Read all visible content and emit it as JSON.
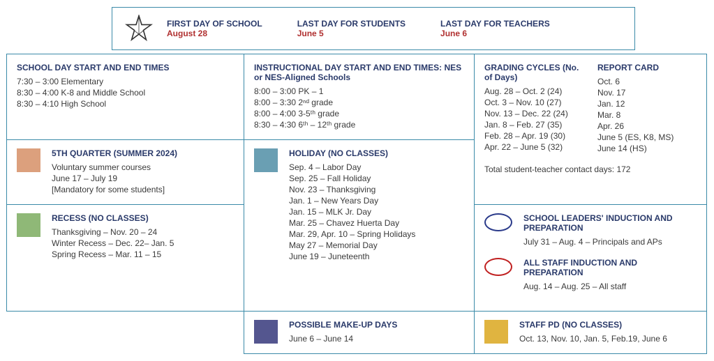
{
  "banner": {
    "dates": [
      {
        "label": "FIRST DAY OF SCHOOL",
        "value": "August 28"
      },
      {
        "label": "LAST DAY FOR STUDENTS",
        "value": "June 5"
      },
      {
        "label": "LAST DAY FOR TEACHERS",
        "value": "June 6"
      }
    ]
  },
  "schoolDay": {
    "title": "SCHOOL DAY START AND END TIMES",
    "lines": [
      "7:30 – 3:00   Elementary",
      "8:30 – 4:00   K-8 and Middle School",
      "8:30 – 4:10   High School"
    ]
  },
  "instructionalDay": {
    "title": "INSTRUCTIONAL DAY START AND END TIMES: NES or NES-Aligned Schools",
    "lines": [
      "8:00 – 3:00   PK – 1",
      "8:00 – 3:30   2ⁿᵈ grade",
      "8:00 – 4:00   3-5ᵗʰ grade",
      "8:30 – 4:30   6ᵗʰ – 12ᵗʰ grade"
    ]
  },
  "grading": {
    "title1": "GRADING CYCLES (No. of Days)",
    "col1": [
      "Aug. 28 – Oct. 2 (24)",
      "Oct. 3 – Nov. 10 (27)",
      "Nov. 13 – Dec. 22 (24)",
      "Jan. 8 – Feb. 27 (35)",
      "Feb. 28 – Apr. 19 (30)",
      "Apr. 22 – June 5 (32)"
    ],
    "title2": "REPORT CARD",
    "col2": [
      "Oct. 6",
      "Nov. 17",
      "Jan. 12",
      "Mar. 8",
      "Apr. 26",
      "June 5 (ES, K8, MS)",
      "June 14 (HS)"
    ],
    "footer": "Total student-teacher contact days: 172"
  },
  "fifth": {
    "title": "5TH QUARTER (SUMMER 2024)",
    "lines": [
      "Voluntary summer courses",
      "June 17 – July 19",
      "[Mandatory for some students]"
    ],
    "color": "#dca07d"
  },
  "recess": {
    "title": "RECESS (NO CLASSES)",
    "lines": [
      "Thanksgiving – Nov. 20 – 24",
      "Winter Recess – Dec. 22– Jan. 5",
      "Spring Recess – Mar. 11 – 15"
    ],
    "color": "#8fb877"
  },
  "holiday": {
    "title": "HOLIDAY (NO CLASSES)",
    "lines": [
      "Sep. 4 – Labor Day",
      "Sep. 25 – Fall Holiday",
      "Nov. 23 – Thanksgiving",
      "Jan. 1 – New Years Day",
      "Jan. 15 – MLK Jr. Day",
      "Mar. 25 – Chavez Huerta Day",
      "Mar. 29, Apr. 10 – Spring Holidays",
      "May 27 – Memorial Day",
      "June 19 – Juneteenth"
    ],
    "color": "#6a9fb3"
  },
  "makeup": {
    "title": "POSSIBLE MAKE-UP DAYS",
    "lines": [
      "June 6 – June 14"
    ],
    "color": "#54568f"
  },
  "leaders": {
    "title": "SCHOOL LEADERS' INDUCTION AND PREPARATION",
    "lines": [
      "July 31 – Aug. 4 – Principals and APs"
    ],
    "ellipse": "#2a3a8a"
  },
  "staffInduction": {
    "title": "ALL STAFF INDUCTION AND PREPARATION",
    "lines": [
      "Aug. 14 – Aug. 25 – All staff"
    ],
    "ellipse": "#c02020"
  },
  "staffPD": {
    "title": "STAFF PD (NO CLASSES)",
    "lines": [
      "Oct. 13, Nov. 10, Jan. 5, Feb.19, June 6"
    ],
    "color": "#e0b440"
  }
}
